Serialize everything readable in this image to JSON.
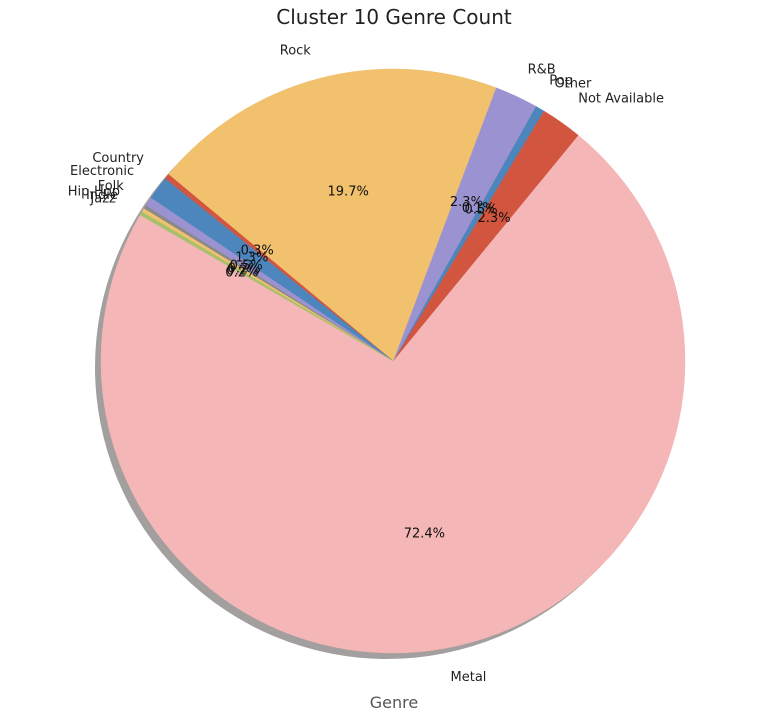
{
  "chart_data": {
    "type": "pie",
    "title": "Cluster 10 Genre Count",
    "xlabel": "Genre",
    "start_angle_deg": 150,
    "shadow": true,
    "categories": [
      "Metal",
      "Not Available",
      "Other",
      "Pop",
      "R&B",
      "Rock",
      "Country",
      "Electronic",
      "Folk",
      "Hip-Hop",
      "Indie",
      "Jazz"
    ],
    "values": [
      72.4,
      2.3,
      0.5,
      0.1,
      2.3,
      19.7,
      0.3,
      1.3,
      0.5,
      0.2,
      0.2,
      0.2
    ],
    "value_labels": [
      "72.4%",
      "2.3%",
      "0.5%",
      "0.1%",
      "2.3%",
      "19.7%",
      "0.3%",
      "1.3%",
      "0.5%",
      "0.2%",
      "0.2%",
      "0.2%"
    ],
    "colors": [
      "#f4b6b6",
      "#d2553f",
      "#4d86bd",
      "#9b93d1",
      "#9b93d1",
      "#f1c16e",
      "#d2553f",
      "#4d86bd",
      "#9b93d1",
      "#8a8a8a",
      "#f1c16e",
      "#a8c06b"
    ]
  }
}
